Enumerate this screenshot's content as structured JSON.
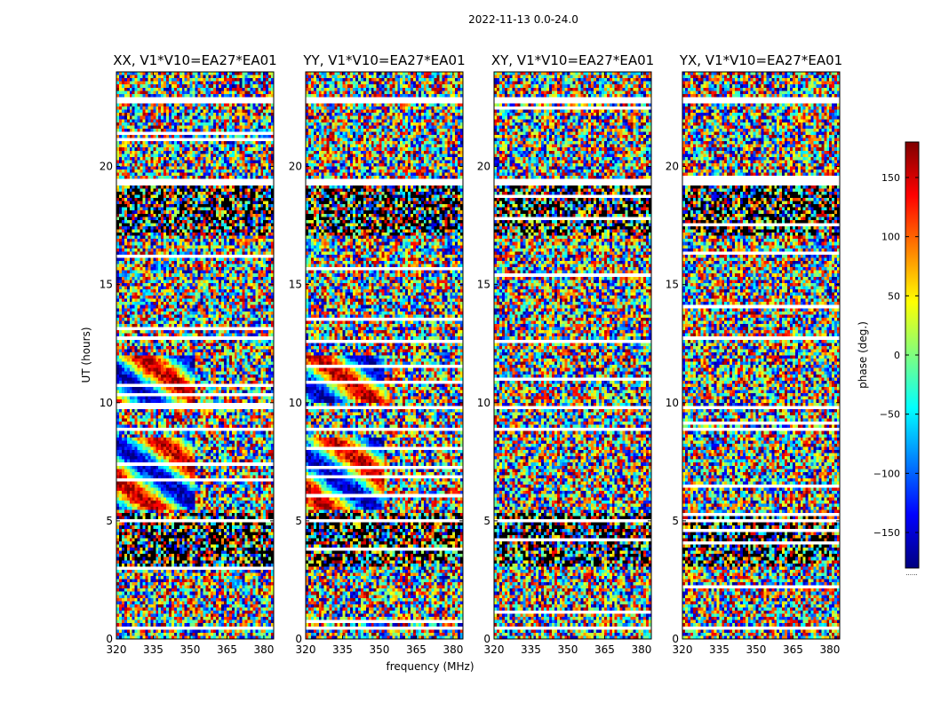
{
  "figure": {
    "suptitle": "2022-11-13 0.0-24.0"
  },
  "colorbar": {
    "label": "phase (deg.)",
    "ticks": [
      -150,
      -100,
      -50,
      0,
      50,
      100,
      150
    ],
    "tick_labels": [
      "−150",
      "−100",
      "−50",
      "0",
      "50",
      "100",
      "150"
    ],
    "range": [
      -180,
      180
    ],
    "footer_text": "......",
    "cmap_stops": [
      "#00007f",
      "#0000ff",
      "#007fff",
      "#00ffff",
      "#7fff7f",
      "#ffff00",
      "#ff7f00",
      "#ff0000",
      "#7f0000"
    ]
  },
  "chart_data": {
    "type": "heatmap",
    "xlabel": "frequency (MHz)",
    "ylabel": "UT (hours)",
    "xlim": [
      320,
      384
    ],
    "ylim": [
      0,
      24
    ],
    "xticks": [
      320,
      335,
      350,
      365,
      380
    ],
    "yticks": [
      0,
      5,
      10,
      15,
      20
    ],
    "value_range": [
      -180,
      180
    ],
    "value_label": "phase (deg.)",
    "panels": [
      {
        "title": "XX, V1*V10=EA27*EA01",
        "pol": "XX"
      },
      {
        "title": "YY, V1*V10=EA27*EA01",
        "pol": "YY"
      },
      {
        "title": "XY, V1*V10=EA27*EA01",
        "pol": "XY"
      },
      {
        "title": "YX, V1*V10=EA27*EA01",
        "pol": "YX"
      }
    ],
    "flagged_time_ranges_h": [
      [
        0.45,
        0.6
      ],
      [
        4.95,
        5.1
      ],
      [
        8.75,
        8.95
      ],
      [
        9.75,
        9.85
      ],
      [
        12.35,
        12.45
      ],
      [
        19.25,
        19.4
      ],
      [
        22.7,
        22.9
      ]
    ]
  }
}
